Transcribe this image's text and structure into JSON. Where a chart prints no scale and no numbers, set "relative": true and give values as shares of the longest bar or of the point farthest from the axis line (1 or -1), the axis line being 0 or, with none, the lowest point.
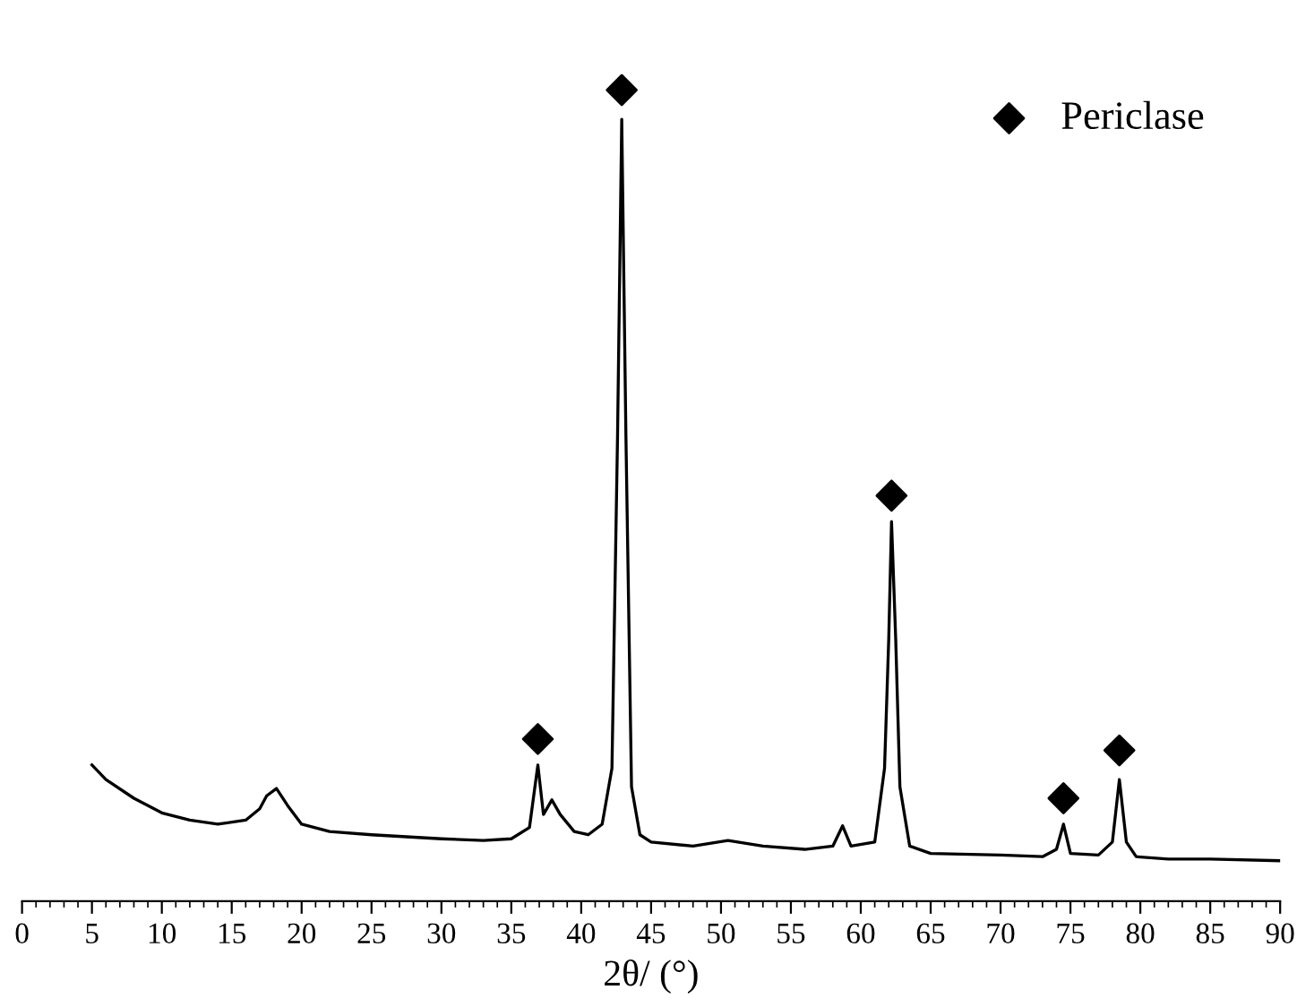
{
  "chart_data": {
    "type": "line",
    "relative": true,
    "xlabel": "2θ/ (°)",
    "xlim": [
      0,
      90
    ],
    "xticks": [
      0,
      5,
      10,
      15,
      20,
      25,
      30,
      35,
      40,
      45,
      50,
      55,
      60,
      65,
      70,
      75,
      80,
      85,
      90
    ],
    "tick_labels": "x",
    "grid": false,
    "legend": "top right",
    "series": [
      {
        "color": "#000000",
        "x": [
          5,
          6,
          8,
          10,
          12,
          14,
          16,
          17,
          17.5,
          18.2,
          19,
          20,
          22,
          25,
          30,
          33,
          35,
          36.3,
          36.9,
          37.3,
          37.9,
          38.5,
          39.5,
          40.5,
          41.5,
          42.2,
          42.6,
          42.9,
          43.2,
          43.6,
          44.2,
          45,
          48,
          50.5,
          53,
          56,
          58,
          58.7,
          59.3,
          61,
          61.7,
          62.0,
          62.2,
          62.5,
          62.8,
          63.5,
          65,
          70,
          73,
          74,
          74.5,
          75,
          77,
          78.0,
          78.5,
          79.0,
          79.7,
          82,
          85,
          90
        ],
        "values": [
          0.168,
          0.15,
          0.127,
          0.109,
          0.1,
          0.095,
          0.1,
          0.114,
          0.13,
          0.139,
          0.118,
          0.095,
          0.086,
          0.082,
          0.077,
          0.075,
          0.077,
          0.091,
          0.168,
          0.107,
          0.125,
          0.107,
          0.086,
          0.082,
          0.095,
          0.164,
          0.573,
          0.964,
          0.573,
          0.141,
          0.082,
          0.073,
          0.068,
          0.075,
          0.068,
          0.064,
          0.068,
          0.093,
          0.068,
          0.073,
          0.164,
          0.323,
          0.468,
          0.323,
          0.141,
          0.068,
          0.059,
          0.057,
          0.055,
          0.064,
          0.095,
          0.059,
          0.057,
          0.073,
          0.15,
          0.073,
          0.055,
          0.052,
          0.052,
          0.05
        ]
      },
      {
        "type": "scatter",
        "name": "Periclase",
        "color": "#000000",
        "marker": "diamond",
        "x": [
          36.9,
          42.9,
          62.2,
          74.5,
          78.5
        ],
        "values": [
          0.2,
          1.0,
          0.5,
          0.127,
          0.186
        ]
      }
    ]
  }
}
